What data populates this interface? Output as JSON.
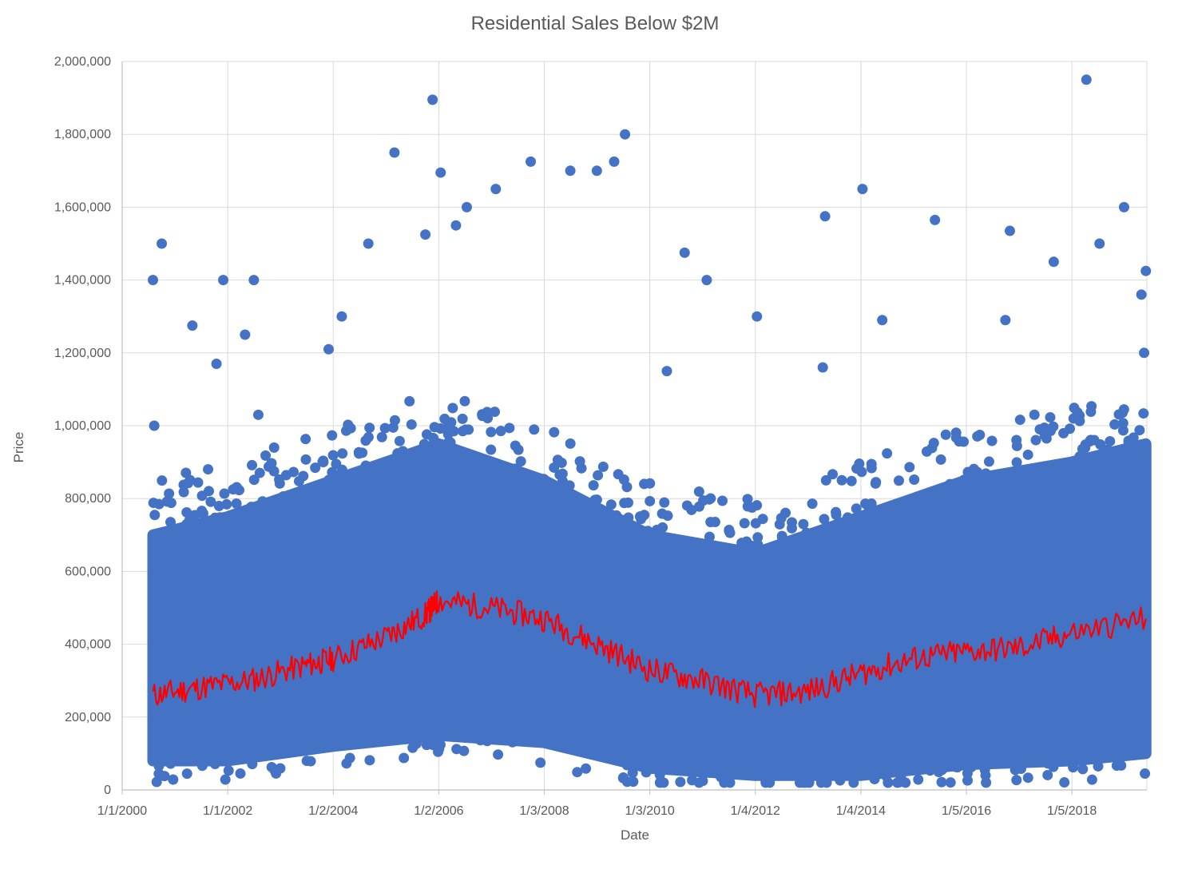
{
  "chart_data": {
    "type": "scatter",
    "title": "Residential Sales Below $2M",
    "xlabel": "Date",
    "ylabel": "Price",
    "x_axis": {
      "min": "2000-01-01",
      "max": "2019-06-08",
      "tick_labels": [
        "1/1/2000",
        "1/1/2002",
        "1/2/2004",
        "1/2/2006",
        "1/3/2008",
        "1/3/2010",
        "1/4/2012",
        "1/4/2014",
        "1/5/2016",
        "1/5/2018"
      ],
      "tick_dates": [
        "2000-01-01",
        "2002-01-01",
        "2004-01-02",
        "2006-01-02",
        "2008-01-03",
        "2010-01-03",
        "2012-01-04",
        "2014-01-04",
        "2016-01-05",
        "2018-01-05"
      ]
    },
    "y_axis": {
      "min": 0,
      "max": 2000000,
      "step": 200000,
      "tick_labels": [
        "0",
        "200,000",
        "400,000",
        "600,000",
        "800,000",
        "1,000,000",
        "1,200,000",
        "1,400,000",
        "1,600,000",
        "1,800,000",
        "2,000,000"
      ]
    },
    "grid": true,
    "legend": "none",
    "colors": {
      "scatter": "#4472c4",
      "median_line": "#ff0000",
      "grid": "#d9d9d9",
      "text": "#595959"
    },
    "series": [
      {
        "type": "scatter",
        "color": "#4472c4",
        "points": [
          {
            "x": "2000-08-01",
            "y": 1400000
          },
          {
            "x": "2000-08-10",
            "y": 1000000
          },
          {
            "x": "2000-10-01",
            "y": 1500000
          },
          {
            "x": "2001-05-01",
            "y": 1275000
          },
          {
            "x": "2001-10-15",
            "y": 1170000
          },
          {
            "x": "2001-12-01",
            "y": 1400000
          },
          {
            "x": "2002-07-01",
            "y": 1400000
          },
          {
            "x": "2002-05-01",
            "y": 1250000
          },
          {
            "x": "2002-08-01",
            "y": 1030000
          },
          {
            "x": "2003-12-01",
            "y": 1210000
          },
          {
            "x": "2004-03-01",
            "y": 1300000
          },
          {
            "x": "2004-09-01",
            "y": 1500000
          },
          {
            "x": "2005-03-01",
            "y": 1750000
          },
          {
            "x": "2005-10-01",
            "y": 1525000
          },
          {
            "x": "2005-11-20",
            "y": 1895000
          },
          {
            "x": "2006-01-15",
            "y": 1695000
          },
          {
            "x": "2006-05-01",
            "y": 1550000
          },
          {
            "x": "2006-07-15",
            "y": 1600000
          },
          {
            "x": "2007-02-01",
            "y": 1650000
          },
          {
            "x": "2007-10-01",
            "y": 1725000
          },
          {
            "x": "2008-07-01",
            "y": 1700000
          },
          {
            "x": "2009-01-01",
            "y": 1700000
          },
          {
            "x": "2009-05-01",
            "y": 1725000
          },
          {
            "x": "2009-07-15",
            "y": 1800000
          },
          {
            "x": "2010-05-01",
            "y": 1150000
          },
          {
            "x": "2010-09-01",
            "y": 1475000
          },
          {
            "x": "2011-02-01",
            "y": 1400000
          },
          {
            "x": "2012-01-15",
            "y": 1300000
          },
          {
            "x": "2013-05-01",
            "y": 1575000
          },
          {
            "x": "2014-01-15",
            "y": 1650000
          },
          {
            "x": "2015-06-01",
            "y": 1565000
          },
          {
            "x": "2016-11-01",
            "y": 1535000
          },
          {
            "x": "2017-09-01",
            "y": 1450000
          },
          {
            "x": "2018-04-15",
            "y": 1950000
          },
          {
            "x": "2018-07-15",
            "y": 1500000
          },
          {
            "x": "2019-01-01",
            "y": 1600000
          },
          {
            "x": "2019-06-01",
            "y": 1425000
          },
          {
            "x": "2019-05-01",
            "y": 1360000
          },
          {
            "x": "2019-05-20",
            "y": 1200000
          },
          {
            "x": "2016-10-01",
            "y": 1290000
          },
          {
            "x": "2014-06-01",
            "y": 1290000
          },
          {
            "x": "2013-04-15",
            "y": 1160000
          }
        ],
        "bulk_band": [
          {
            "x": "2000-08-01",
            "low": 80000,
            "high": 700000
          },
          {
            "x": "2002-01-01",
            "low": 80000,
            "high": 750000
          },
          {
            "x": "2004-01-01",
            "low": 120000,
            "high": 850000
          },
          {
            "x": "2006-01-01",
            "low": 150000,
            "high": 950000
          },
          {
            "x": "2008-01-01",
            "low": 130000,
            "high": 850000
          },
          {
            "x": "2010-01-01",
            "low": 60000,
            "high": 700000
          },
          {
            "x": "2012-01-01",
            "low": 40000,
            "high": 650000
          },
          {
            "x": "2014-01-01",
            "low": 40000,
            "high": 750000
          },
          {
            "x": "2016-01-01",
            "low": 70000,
            "high": 850000
          },
          {
            "x": "2018-01-01",
            "low": 80000,
            "high": 900000
          },
          {
            "x": "2019-06-01",
            "low": 100000,
            "high": 950000
          }
        ]
      },
      {
        "type": "line",
        "color": "#ff0000",
        "points": [
          {
            "x": "2000-08-01",
            "y": 260000
          },
          {
            "x": "2001-06-01",
            "y": 280000
          },
          {
            "x": "2002-06-01",
            "y": 300000
          },
          {
            "x": "2003-06-01",
            "y": 340000
          },
          {
            "x": "2004-01-01",
            "y": 360000
          },
          {
            "x": "2005-01-01",
            "y": 420000
          },
          {
            "x": "2005-10-01",
            "y": 480000
          },
          {
            "x": "2006-01-01",
            "y": 520000
          },
          {
            "x": "2007-01-01",
            "y": 500000
          },
          {
            "x": "2008-01-01",
            "y": 470000
          },
          {
            "x": "2009-01-01",
            "y": 400000
          },
          {
            "x": "2010-01-01",
            "y": 330000
          },
          {
            "x": "2011-01-01",
            "y": 300000
          },
          {
            "x": "2012-01-01",
            "y": 260000
          },
          {
            "x": "2013-01-01",
            "y": 270000
          },
          {
            "x": "2014-01-01",
            "y": 320000
          },
          {
            "x": "2015-01-01",
            "y": 360000
          },
          {
            "x": "2016-01-01",
            "y": 380000
          },
          {
            "x": "2017-01-01",
            "y": 390000
          },
          {
            "x": "2018-01-01",
            "y": 430000
          },
          {
            "x": "2019-06-01",
            "y": 470000
          }
        ]
      }
    ]
  }
}
